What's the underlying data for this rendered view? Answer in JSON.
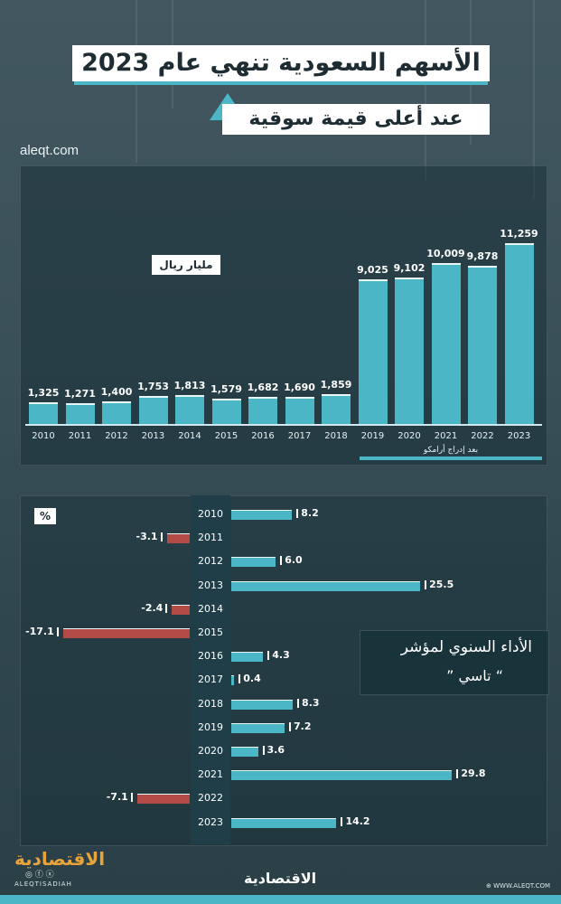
{
  "header": {
    "title_line1": "الأسهم السعودية تنهي عام 2023",
    "title_line2": "عند أعلى قيمة سوقية",
    "site": "aleqt.com"
  },
  "market_cap": {
    "unit_label": "مليار ريال",
    "note": "بعد إدراج أرامكو"
  },
  "performance": {
    "unit_label": "%",
    "title_line1": "الأداء السنوي لمؤشر",
    "title_line2": "” تاسي “"
  },
  "footer": {
    "brand_left": "الاقتصادية",
    "handle": "ALEQTISADIAH",
    "social": "◎ ⓕ ⓧ",
    "brand_center": "الاقتصادية",
    "website": "WWW.ALEQT.COM",
    "globe": "⊕"
  },
  "colors": {
    "bar": "#4bb6c6",
    "negative": "#b24a45",
    "brand": "#e8a43a"
  },
  "chart_data": [
    {
      "type": "bar",
      "categories": [
        "2010",
        "2011",
        "2012",
        "2013",
        "2014",
        "2015",
        "2016",
        "2017",
        "2018",
        "2019",
        "2020",
        "2021",
        "2022",
        "2023"
      ],
      "values": [
        1325,
        1271,
        1400,
        1753,
        1813,
        1579,
        1682,
        1690,
        1859,
        9025,
        9102,
        10009,
        9878,
        11259
      ],
      "value_labels": [
        "1,325",
        "1,271",
        "1,400",
        "1,753",
        "1,813",
        "1,579",
        "1,682",
        "1,690",
        "1,859",
        "9,025",
        "9,102",
        "10,009",
        "9,878",
        "11,259"
      ],
      "ylabel": "مليار ريال",
      "annotation": "بعد إدراج أرامكو"
    },
    {
      "type": "bar",
      "orientation": "horizontal",
      "categories": [
        "2010",
        "2011",
        "2012",
        "2013",
        "2014",
        "2015",
        "2016",
        "2017",
        "2018",
        "2019",
        "2020",
        "2021",
        "2022",
        "2023"
      ],
      "values": [
        8.2,
        -3.1,
        6.0,
        25.5,
        -2.4,
        -17.1,
        4.3,
        0.4,
        8.3,
        7.2,
        3.6,
        29.8,
        -7.1,
        14.2
      ],
      "value_labels": [
        "8.2",
        "-3.1",
        "6.0",
        "25.5",
        "-2.4",
        "-17.1",
        "4.3",
        "0.4",
        "8.3",
        "7.2",
        "3.6",
        "29.8",
        "-7.1",
        "14.2"
      ],
      "xlabel": "%"
    }
  ]
}
